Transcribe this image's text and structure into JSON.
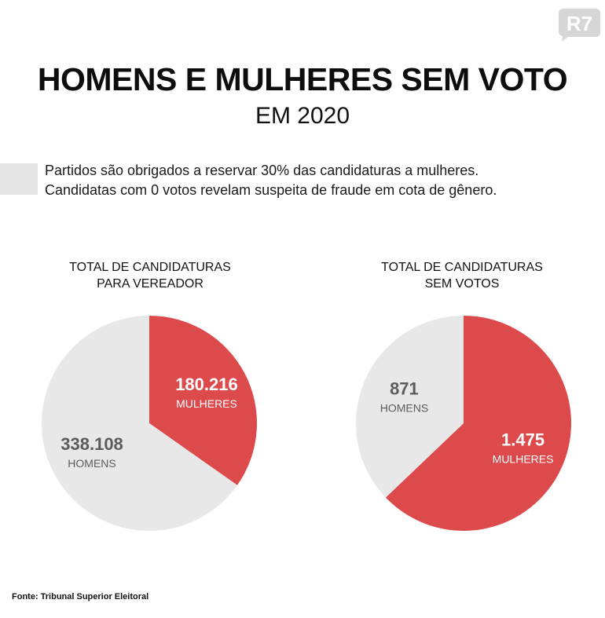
{
  "brand": "R7",
  "title": "HOMENS E MULHERES SEM VOTO",
  "subtitle": "EM 2020",
  "intro": [
    "Partidos são obrigados a reservar 30% das candidaturas a mulheres.",
    "Candidatas com 0 votos revelam suspeita de fraude em cota de gênero."
  ],
  "colors": {
    "women": "#dc4a4b",
    "men": "#e8e8e8",
    "label_on_red": "#ffffff",
    "label_on_grey": "#5c5c5c"
  },
  "chart_data": [
    {
      "type": "pie",
      "title_lines": [
        "TOTAL DE CANDIDATURAS",
        "PARA VEREADOR"
      ],
      "slices": [
        {
          "label": "MULHERES",
          "value": 180216,
          "value_text": "180.216",
          "color": "#dc4a4b"
        },
        {
          "label": "HOMENS",
          "value": 338108,
          "value_text": "338.108",
          "color": "#e8e8e8"
        }
      ]
    },
    {
      "type": "pie",
      "title_lines": [
        "TOTAL DE CANDIDATURAS",
        "SEM VOTOS"
      ],
      "slices": [
        {
          "label": "MULHERES",
          "value": 1475,
          "value_text": "1.475",
          "color": "#dc4a4b"
        },
        {
          "label": "HOMENS",
          "value": 871,
          "value_text": "871",
          "color": "#e8e8e8"
        }
      ]
    }
  ],
  "source": "Fonte: Tribunal Superior Eleitoral"
}
